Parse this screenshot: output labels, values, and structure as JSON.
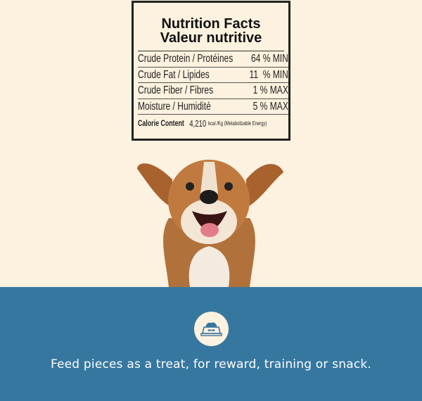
{
  "nutrition": {
    "title_en": "Nutrition Facts",
    "title_fr": "Valeur nutritive",
    "rows": [
      {
        "label": "Crude Protein / Protéines",
        "value": "64 % MIN"
      },
      {
        "label": "Crude Fat / Lipides",
        "value": "11  % MIN"
      },
      {
        "label": "Crude Fiber / Fibres",
        "value": "1 % MAX"
      },
      {
        "label": "Moisture / Humidité",
        "value": "5 % MAX"
      }
    ],
    "calorie": {
      "label": "Calorie Content",
      "value": "4,210",
      "unit": "kcal /Kg (Metabolizable Energy)"
    }
  },
  "banner": {
    "icon": "dog-food-bowl-icon",
    "caption": "Feed pieces as a treat, for reward, training or snack.",
    "color": "#3677a0"
  }
}
